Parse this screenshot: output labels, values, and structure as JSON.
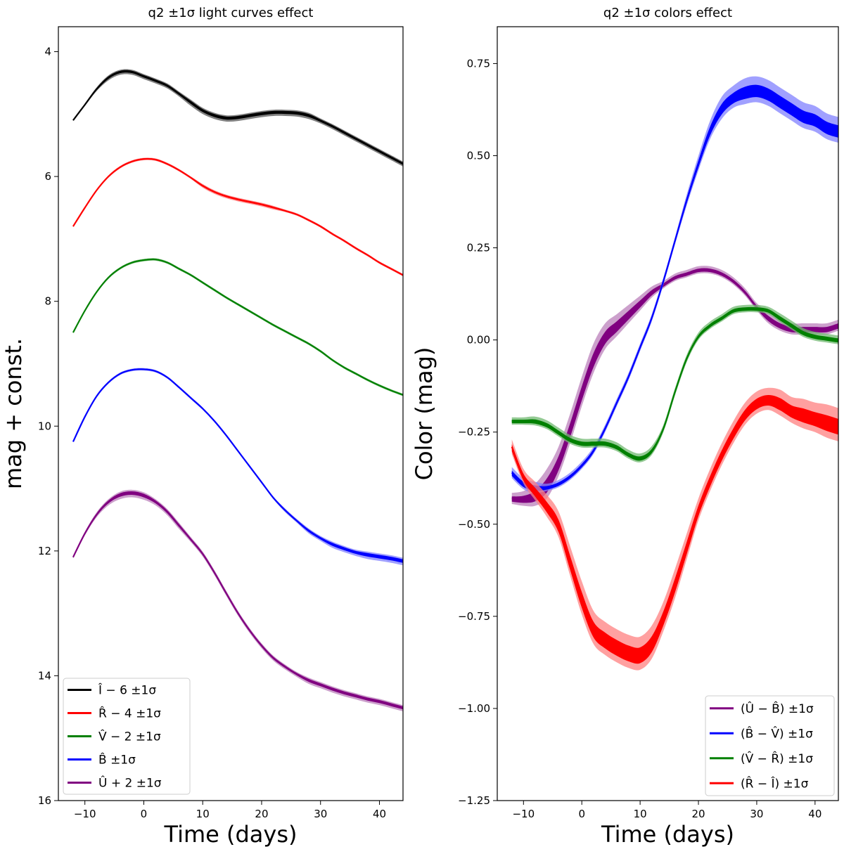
{
  "chart_data": [
    {
      "type": "line",
      "title": "q2 ±1σ light curves effect",
      "xlabel": "Time (days)",
      "ylabel": "mag + const.",
      "xlim": [
        -14.5,
        44
      ],
      "ylim": [
        16,
        3.6
      ],
      "y_inverted": true,
      "xticks": [
        -10,
        0,
        10,
        20,
        30,
        40
      ],
      "xtick_labels": [
        "−10",
        "0",
        "10",
        "20",
        "30",
        "40"
      ],
      "yticks": [
        4,
        6,
        8,
        10,
        12,
        14,
        16
      ],
      "ytick_labels": [
        "4",
        "6",
        "8",
        "10",
        "12",
        "14",
        "16"
      ],
      "legend_position": "lower-left",
      "series": [
        {
          "name": "Î − 6 ±1σ",
          "color": "#000000",
          "band_color": "#555555",
          "x": [
            -12,
            -10,
            -8,
            -6,
            -4,
            -2,
            0,
            2,
            4,
            6,
            8,
            10,
            12,
            14,
            16,
            18,
            20,
            22,
            24,
            26,
            28,
            30,
            32,
            34,
            36,
            38,
            40,
            42,
            44
          ],
          "y": [
            5.1,
            4.85,
            4.6,
            4.42,
            4.33,
            4.33,
            4.4,
            4.47,
            4.55,
            4.68,
            4.82,
            4.95,
            5.03,
            5.07,
            5.06,
            5.03,
            5.0,
            4.98,
            4.98,
            4.99,
            5.03,
            5.11,
            5.2,
            5.3,
            5.4,
            5.5,
            5.6,
            5.7,
            5.8
          ],
          "err": [
            0.01,
            0.02,
            0.03,
            0.04,
            0.04,
            0.04,
            0.04,
            0.04,
            0.04,
            0.04,
            0.05,
            0.05,
            0.05,
            0.05,
            0.05,
            0.05,
            0.05,
            0.05,
            0.05,
            0.05,
            0.05,
            0.04,
            0.04,
            0.04,
            0.04,
            0.04,
            0.04,
            0.04,
            0.04
          ]
        },
        {
          "name": "R̂ − 4 ±1σ",
          "color": "#ff0000",
          "band_color": "#ff8080",
          "x": [
            -12,
            -10,
            -8,
            -6,
            -4,
            -2,
            0,
            2,
            4,
            6,
            8,
            10,
            12,
            14,
            16,
            18,
            20,
            22,
            24,
            26,
            28,
            30,
            32,
            34,
            36,
            38,
            40,
            42,
            44
          ],
          "y": [
            6.8,
            6.5,
            6.22,
            6.0,
            5.85,
            5.76,
            5.72,
            5.73,
            5.8,
            5.9,
            6.02,
            6.15,
            6.25,
            6.32,
            6.37,
            6.41,
            6.45,
            6.5,
            6.55,
            6.61,
            6.7,
            6.8,
            6.92,
            7.03,
            7.15,
            7.26,
            7.38,
            7.48,
            7.58
          ],
          "err": [
            0.01,
            0.01,
            0.01,
            0.02,
            0.02,
            0.02,
            0.02,
            0.02,
            0.02,
            0.02,
            0.02,
            0.03,
            0.03,
            0.03,
            0.03,
            0.03,
            0.03,
            0.03,
            0.02,
            0.02,
            0.02,
            0.02,
            0.02,
            0.02,
            0.02,
            0.02,
            0.02,
            0.02,
            0.02
          ]
        },
        {
          "name": "V̂ − 2 ±1σ",
          "color": "#008000",
          "band_color": "#70b870",
          "x": [
            -12,
            -10,
            -8,
            -6,
            -4,
            -2,
            0,
            2,
            4,
            6,
            8,
            10,
            12,
            14,
            16,
            18,
            20,
            22,
            24,
            26,
            28,
            30,
            32,
            34,
            36,
            38,
            40,
            42,
            44
          ],
          "y": [
            8.5,
            8.15,
            7.85,
            7.62,
            7.47,
            7.38,
            7.34,
            7.33,
            7.38,
            7.48,
            7.58,
            7.7,
            7.82,
            7.94,
            8.05,
            8.16,
            8.27,
            8.38,
            8.48,
            8.58,
            8.68,
            8.8,
            8.94,
            9.06,
            9.16,
            9.26,
            9.35,
            9.43,
            9.5
          ],
          "err": [
            0.01,
            0.01,
            0.01,
            0.02,
            0.02,
            0.02,
            0.02,
            0.02,
            0.02,
            0.02,
            0.02,
            0.02,
            0.02,
            0.02,
            0.02,
            0.02,
            0.02,
            0.02,
            0.02,
            0.02,
            0.02,
            0.02,
            0.02,
            0.02,
            0.02,
            0.02,
            0.02,
            0.02,
            0.02
          ]
        },
        {
          "name": "B̂ ±1σ",
          "color": "#0000ff",
          "band_color": "#8080ff",
          "x": [
            -12,
            -10,
            -8,
            -6,
            -4,
            -2,
            0,
            2,
            4,
            6,
            8,
            10,
            12,
            14,
            16,
            18,
            20,
            22,
            24,
            26,
            28,
            30,
            32,
            34,
            36,
            38,
            40,
            42,
            44
          ],
          "y": [
            10.25,
            9.85,
            9.52,
            9.3,
            9.16,
            9.1,
            9.09,
            9.12,
            9.22,
            9.38,
            9.55,
            9.72,
            9.92,
            10.15,
            10.4,
            10.65,
            10.9,
            11.15,
            11.35,
            11.52,
            11.68,
            11.8,
            11.9,
            11.97,
            12.03,
            12.07,
            12.1,
            12.13,
            12.17
          ],
          "err": [
            0.01,
            0.01,
            0.02,
            0.02,
            0.02,
            0.02,
            0.02,
            0.02,
            0.02,
            0.02,
            0.02,
            0.02,
            0.02,
            0.02,
            0.02,
            0.02,
            0.02,
            0.02,
            0.03,
            0.03,
            0.04,
            0.04,
            0.05,
            0.05,
            0.05,
            0.06,
            0.06,
            0.06,
            0.06
          ]
        },
        {
          "name": "Û + 2 ±1σ",
          "color": "#800080",
          "band_color": "#bb80bb",
          "x": [
            -12,
            -10,
            -8,
            -6,
            -4,
            -2,
            0,
            2,
            4,
            6,
            8,
            10,
            12,
            14,
            16,
            18,
            20,
            22,
            24,
            26,
            28,
            30,
            32,
            34,
            36,
            38,
            40,
            42,
            44
          ],
          "y": [
            12.1,
            11.72,
            11.42,
            11.22,
            11.11,
            11.08,
            11.12,
            11.22,
            11.38,
            11.6,
            11.82,
            12.05,
            12.35,
            12.68,
            13.0,
            13.28,
            13.52,
            13.72,
            13.86,
            13.98,
            14.08,
            14.15,
            14.22,
            14.28,
            14.33,
            14.38,
            14.42,
            14.47,
            14.52
          ],
          "err": [
            0.02,
            0.03,
            0.04,
            0.05,
            0.06,
            0.06,
            0.06,
            0.05,
            0.05,
            0.05,
            0.04,
            0.04,
            0.04,
            0.04,
            0.04,
            0.04,
            0.04,
            0.04,
            0.04,
            0.04,
            0.05,
            0.05,
            0.05,
            0.05,
            0.05,
            0.05,
            0.05,
            0.05,
            0.05
          ]
        }
      ]
    },
    {
      "type": "line",
      "title": "q2 ±1σ colors effect",
      "xlabel": "Time (days)",
      "ylabel": "Color (mag)",
      "xlim": [
        -14.5,
        44
      ],
      "ylim": [
        -1.25,
        0.85
      ],
      "xticks": [
        -10,
        0,
        10,
        20,
        30,
        40
      ],
      "xtick_labels": [
        "−10",
        "0",
        "10",
        "20",
        "30",
        "40"
      ],
      "yticks": [
        0.75,
        0.5,
        0.25,
        0.0,
        -0.25,
        -0.5,
        -0.75,
        -1.0,
        -1.25
      ],
      "ytick_labels": [
        "0.75",
        "0.50",
        "0.25",
        "0.00",
        "−0.25",
        "−0.50",
        "−0.75",
        "−1.00",
        "−1.25"
      ],
      "legend_position": "lower-right",
      "series": [
        {
          "name": "(Û − B̂) ±1σ",
          "color": "#800080",
          "band_color": "#bb80bb",
          "x": [
            -12,
            -10,
            -8,
            -6,
            -4,
            -2,
            0,
            2,
            4,
            6,
            8,
            10,
            12,
            14,
            16,
            18,
            20,
            22,
            24,
            26,
            28,
            30,
            32,
            34,
            36,
            38,
            40,
            42,
            44
          ],
          "y": [
            -0.43,
            -0.43,
            -0.42,
            -0.39,
            -0.33,
            -0.24,
            -0.14,
            -0.05,
            0.01,
            0.04,
            0.07,
            0.1,
            0.13,
            0.15,
            0.17,
            0.18,
            0.19,
            0.19,
            0.18,
            0.16,
            0.13,
            0.09,
            0.06,
            0.04,
            0.03,
            0.03,
            0.03,
            0.03,
            0.04
          ],
          "err": [
            0.015,
            0.02,
            0.03,
            0.04,
            0.04,
            0.04,
            0.04,
            0.04,
            0.035,
            0.03,
            0.025,
            0.02,
            0.015,
            0.01,
            0.01,
            0.01,
            0.01,
            0.01,
            0.01,
            0.01,
            0.01,
            0.01,
            0.015,
            0.015,
            0.015,
            0.015,
            0.015,
            0.015,
            0.015
          ]
        },
        {
          "name": "(B̂ − V̂) ±1σ",
          "color": "#0000ff",
          "band_color": "#8080ff",
          "x": [
            -12,
            -10,
            -8,
            -6,
            -4,
            -2,
            0,
            2,
            4,
            6,
            8,
            10,
            12,
            14,
            16,
            18,
            20,
            22,
            24,
            26,
            28,
            30,
            32,
            34,
            36,
            38,
            40,
            42,
            44
          ],
          "y": [
            -0.36,
            -0.39,
            -0.4,
            -0.4,
            -0.39,
            -0.37,
            -0.34,
            -0.3,
            -0.24,
            -0.17,
            -0.1,
            -0.02,
            0.06,
            0.16,
            0.27,
            0.38,
            0.48,
            0.57,
            0.63,
            0.66,
            0.675,
            0.68,
            0.67,
            0.65,
            0.63,
            0.61,
            0.6,
            0.58,
            0.57
          ],
          "err": [
            0.015,
            0.015,
            0.015,
            0.01,
            0.01,
            0.01,
            0.01,
            0.01,
            0.01,
            0.01,
            0.01,
            0.01,
            0.01,
            0.01,
            0.01,
            0.015,
            0.02,
            0.025,
            0.03,
            0.03,
            0.035,
            0.035,
            0.035,
            0.035,
            0.035,
            0.035,
            0.035,
            0.035,
            0.035
          ]
        },
        {
          "name": "(V̂ − R̂) ±1σ",
          "color": "#008000",
          "band_color": "#70b870",
          "x": [
            -12,
            -10,
            -8,
            -6,
            -4,
            -2,
            0,
            2,
            4,
            6,
            8,
            10,
            12,
            14,
            16,
            18,
            20,
            22,
            24,
            26,
            28,
            30,
            32,
            34,
            36,
            38,
            40,
            42,
            44
          ],
          "y": [
            -0.22,
            -0.22,
            -0.22,
            -0.23,
            -0.25,
            -0.27,
            -0.28,
            -0.28,
            -0.28,
            -0.29,
            -0.31,
            -0.32,
            -0.3,
            -0.24,
            -0.14,
            -0.05,
            0.01,
            0.04,
            0.06,
            0.08,
            0.085,
            0.085,
            0.08,
            0.06,
            0.04,
            0.02,
            0.01,
            0.005,
            0.0
          ],
          "err": [
            0.01,
            0.01,
            0.012,
            0.012,
            0.012,
            0.012,
            0.012,
            0.012,
            0.012,
            0.012,
            0.012,
            0.012,
            0.012,
            0.01,
            0.01,
            0.01,
            0.01,
            0.01,
            0.01,
            0.01,
            0.01,
            0.01,
            0.01,
            0.012,
            0.012,
            0.012,
            0.012,
            0.012,
            0.012
          ]
        },
        {
          "name": "(R̂ − Î) ±1σ",
          "color": "#ff0000",
          "band_color": "#ff8080",
          "x": [
            -12,
            -10,
            -8,
            -6,
            -4,
            -2,
            0,
            2,
            4,
            6,
            8,
            10,
            12,
            14,
            16,
            18,
            20,
            22,
            24,
            26,
            28,
            30,
            32,
            34,
            36,
            38,
            40,
            42,
            44
          ],
          "y": [
            -0.29,
            -0.37,
            -0.41,
            -0.45,
            -0.5,
            -0.6,
            -0.7,
            -0.78,
            -0.81,
            -0.83,
            -0.845,
            -0.85,
            -0.82,
            -0.75,
            -0.66,
            -0.56,
            -0.46,
            -0.38,
            -0.31,
            -0.25,
            -0.2,
            -0.17,
            -0.16,
            -0.17,
            -0.19,
            -0.2,
            -0.21,
            -0.22,
            -0.23
          ],
          "err": [
            0.02,
            0.02,
            0.025,
            0.03,
            0.035,
            0.04,
            0.045,
            0.045,
            0.045,
            0.045,
            0.045,
            0.045,
            0.045,
            0.04,
            0.04,
            0.035,
            0.03,
            0.03,
            0.03,
            0.03,
            0.03,
            0.03,
            0.03,
            0.035,
            0.035,
            0.04,
            0.04,
            0.045,
            0.045
          ]
        }
      ]
    }
  ]
}
